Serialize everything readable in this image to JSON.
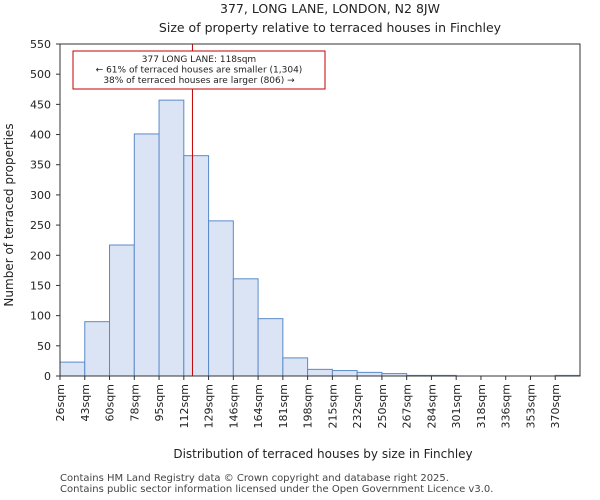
{
  "chart_data": {
    "type": "bar",
    "title": "377, LONG LANE, LONDON, N2 8JW",
    "subtitle": "Size of property relative to terraced houses in Finchley",
    "xlabel": "Distribution of terraced houses by size in Finchley",
    "ylabel": "Number of terraced properties",
    "ylim": [
      0,
      550
    ],
    "yticks": [
      0,
      50,
      100,
      150,
      200,
      250,
      300,
      350,
      400,
      450,
      500,
      550
    ],
    "grid": false,
    "categories": [
      "26sqm",
      "43sqm",
      "60sqm",
      "78sqm",
      "95sqm",
      "112sqm",
      "129sqm",
      "146sqm",
      "164sqm",
      "181sqm",
      "198sqm",
      "215sqm",
      "232sqm",
      "250sqm",
      "267sqm",
      "284sqm",
      "301sqm",
      "318sqm",
      "336sqm",
      "353sqm",
      "370sqm"
    ],
    "values": [
      23,
      90,
      217,
      401,
      457,
      365,
      257,
      161,
      95,
      30,
      11,
      9,
      6,
      4,
      1,
      1,
      0,
      0,
      0,
      0,
      1
    ],
    "bar_fill": "#dae4f5",
    "bar_edge": "#5b8ac9",
    "marker": {
      "value_sqm": 118,
      "color": "#c00000",
      "label_lines": [
        "377 LONG LANE: 118sqm",
        "← 61% of terraced houses are smaller (1,304)",
        "38% of terraced houses are larger (806) →"
      ]
    }
  },
  "footer": {
    "line1": "Contains HM Land Registry data © Crown copyright and database right 2025.",
    "line2": "Contains public sector information licensed under the Open Government Licence v3.0."
  }
}
